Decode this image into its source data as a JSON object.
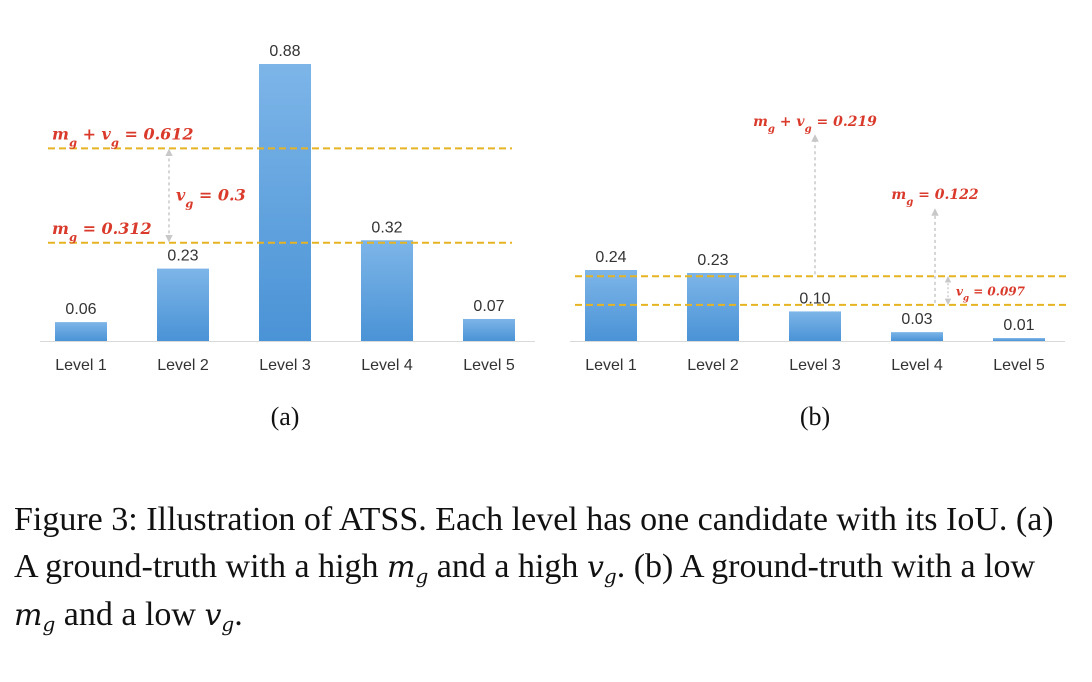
{
  "chart_data": [
    {
      "type": "bar",
      "panel_label": "(a)",
      "categories": [
        "Level 1",
        "Level 2",
        "Level 3",
        "Level 4",
        "Level 5"
      ],
      "values": [
        0.06,
        0.23,
        0.88,
        0.32,
        0.07
      ],
      "value_labels": [
        "0.06",
        "0.23",
        "0.88",
        "0.32",
        "0.07"
      ],
      "ylim": [
        0,
        0.88
      ],
      "grid": false,
      "bar_color": "#5aa0de",
      "threshold_color": "#e6b422",
      "annotation_color": "#d93a2b",
      "reference_lines": [
        {
          "label": "m_g + v_g = 0.612",
          "value": 0.612
        },
        {
          "label": "m_g = 0.312",
          "value": 0.312
        }
      ],
      "gap_annotation": {
        "label": "v_g = 0.3"
      }
    },
    {
      "type": "bar",
      "panel_label": "(b)",
      "categories": [
        "Level 1",
        "Level 2",
        "Level 3",
        "Level 4",
        "Level 5"
      ],
      "values": [
        0.24,
        0.23,
        0.1,
        0.03,
        0.01
      ],
      "value_labels": [
        "0.24",
        "0.23",
        "0.10",
        "0.03",
        "0.01"
      ],
      "ylim": [
        0,
        0.24
      ],
      "grid": false,
      "bar_color": "#5aa0de",
      "threshold_color": "#e6b422",
      "annotation_color": "#d93a2b",
      "reference_lines": [
        {
          "label": "m_g + v_g = 0.219",
          "value": 0.219
        },
        {
          "label": "m_g = 0.122",
          "value": 0.122
        }
      ],
      "gap_annotation": {
        "label": "v_g = 0.097"
      }
    }
  ],
  "caption": {
    "prefix": "Figure 3: Illustration of ATSS. Each level has one candidate with its IoU. (a) A ground-truth with a high",
    "m": "m",
    "g": "g",
    "mid1": "and a high",
    "v": "v",
    "mid2": ". (b) A ground-truth with a low",
    "mid3": "and a low",
    "end": "."
  }
}
